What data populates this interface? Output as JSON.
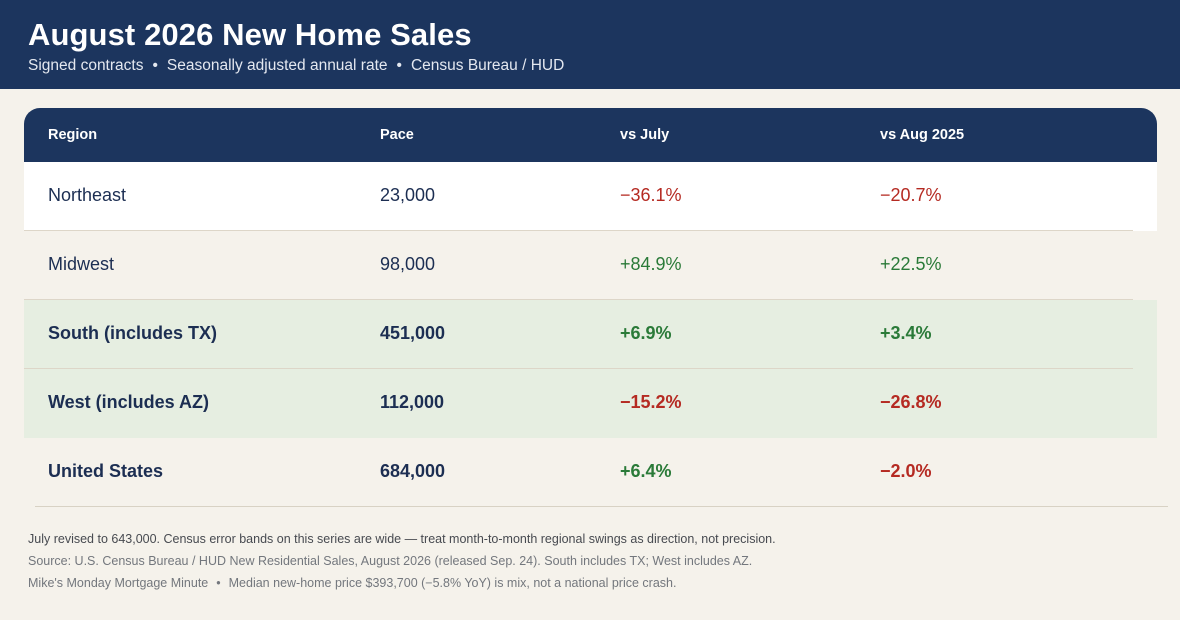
{
  "header": {
    "title": "August 2026 New Home Sales",
    "subtitle_parts": [
      "Signed contracts",
      "Seasonally adjusted annual rate",
      "Census Bureau / HUD"
    ]
  },
  "table": {
    "columns": [
      "Region",
      "Pace",
      "vs July",
      "vs Aug 2025"
    ],
    "rows": [
      {
        "region": "Northeast",
        "pace": "23,000",
        "vs_july": "−36.1%",
        "vs_aug_2025": "−20.7%"
      },
      {
        "region": "Midwest",
        "pace": "98,000",
        "vs_july": "+84.9%",
        "vs_aug_2025": "+22.5%"
      },
      {
        "region": "South (includes TX)",
        "pace": "451,000",
        "vs_july": "+6.9%",
        "vs_aug_2025": "+3.4%"
      },
      {
        "region": "West (includes AZ)",
        "pace": "112,000",
        "vs_july": "−15.2%",
        "vs_aug_2025": "−26.8%"
      },
      {
        "region": "United States",
        "pace": "684,000",
        "vs_july": "+6.4%",
        "vs_aug_2025": "−2.0%"
      }
    ]
  },
  "notes": {
    "line1": "July revised to 643,000. Census error bands on this series are wide — treat month-to-month regional swings as direction, not precision.",
    "line2": "Source: U.S. Census Bureau / HUD New Residential Sales, August 2026 (released Sep. 24). South includes TX; West includes AZ.",
    "line3a": "Mike's Monday Mortgage Minute",
    "line3b": "Median new-home price $393,700 (−5.8% YoY) is mix, not a national price crash."
  },
  "colors": {
    "navy": "#1c355e",
    "negative": "#b52a22",
    "positive": "#2a7a38",
    "highlight_row": "#e6eee1",
    "background": "#f5f2eb"
  }
}
